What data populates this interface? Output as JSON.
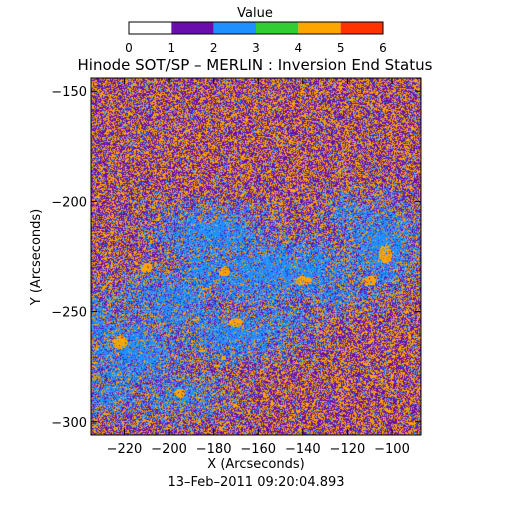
{
  "colorbar": {
    "label": "Value",
    "ticks": [
      "0",
      "1",
      "2",
      "3",
      "4",
      "5",
      "6"
    ],
    "segments": [
      {
        "value": 0,
        "color": "#ffffff"
      },
      {
        "value": 1,
        "color": "#6a0dad"
      },
      {
        "value": 2,
        "color": "#1e90ff"
      },
      {
        "value": 3,
        "color": "#32cd32"
      },
      {
        "value": 4,
        "color": "#ffa500"
      },
      {
        "value": 5,
        "color": "#ff3300"
      }
    ]
  },
  "chart_data": {
    "type": "heatmap",
    "title": "Hinode SOT/SP – MERLIN : Inversion End Status",
    "xlabel": "X (Arcseconds)",
    "ylabel": "Y (Arcseconds)",
    "xlim": [
      -235,
      -87
    ],
    "ylim": [
      -306,
      -144
    ],
    "x_ticks": [
      -220,
      -200,
      -180,
      -160,
      -140,
      -120,
      -100
    ],
    "y_ticks": [
      -150,
      -200,
      -250,
      -300
    ],
    "x_tick_labels": [
      "−220",
      "−200",
      "−180",
      "−160",
      "−140",
      "−120",
      "−100"
    ],
    "y_tick_labels": [
      "−150",
      "−200",
      "−250",
      "−300"
    ],
    "value_range": [
      0,
      6
    ],
    "dominant_values": [
      1,
      2,
      4
    ],
    "region_colors": {
      "background_mixed": [
        "#6a0dad",
        "#ffa500"
      ],
      "active_region": "#1e90ff",
      "strong_field_spots": "#ffa500"
    },
    "timestamp": "13–Feb–2011 09:20:04.893"
  }
}
